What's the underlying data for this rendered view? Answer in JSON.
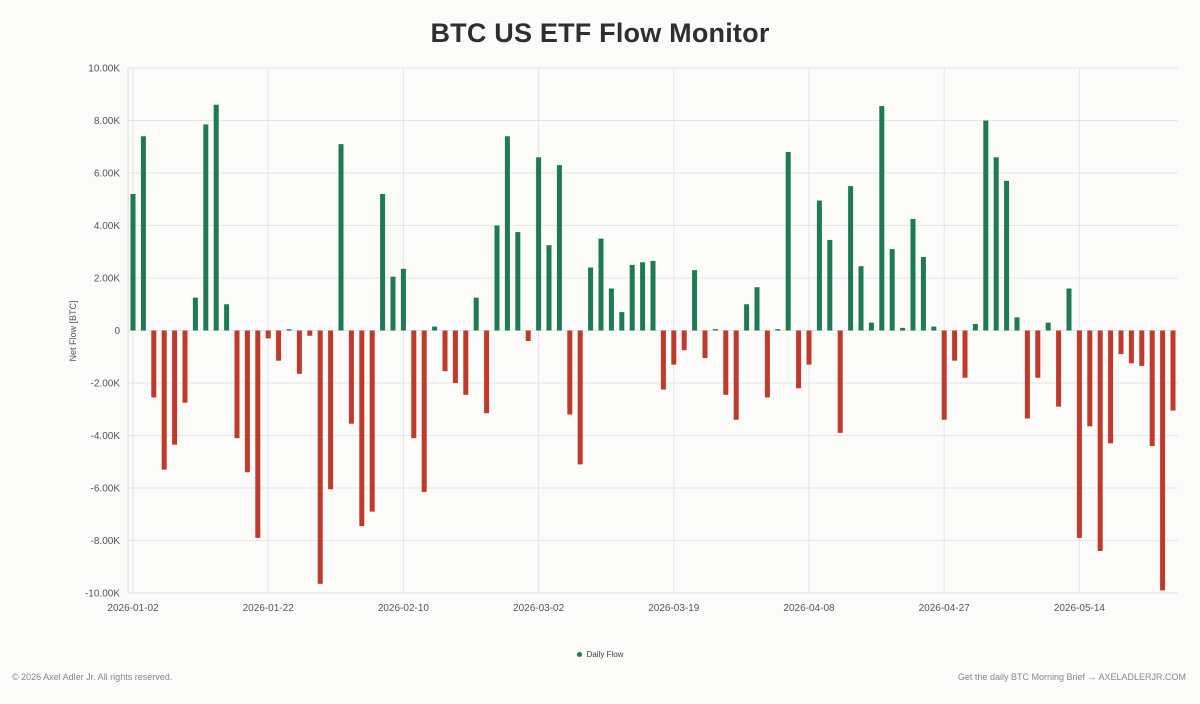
{
  "title": "BTC US ETF Flow Monitor",
  "footer": {
    "copyright": "© 2026 Axel Adler Jr. All rights reserved.",
    "brief": "Get the daily BTC Morning Brief → AXELADLERJR.COM"
  },
  "colors": {
    "positive": "#1e7a55",
    "negative": "#c0392b",
    "grid": "#e6e6e6"
  },
  "chart_data": {
    "type": "bar",
    "ylabel": "Net Flow [BTC]",
    "ylim": [
      -10000,
      10000
    ],
    "yticks": [
      {
        "value": 10000,
        "label": "10.00K"
      },
      {
        "value": 8000,
        "label": "8.00K"
      },
      {
        "value": 6000,
        "label": "6.00K"
      },
      {
        "value": 4000,
        "label": "4.00K"
      },
      {
        "value": 2000,
        "label": "2.00K"
      },
      {
        "value": 0,
        "label": "0"
      },
      {
        "value": -2000,
        "label": "-2.00K"
      },
      {
        "value": -4000,
        "label": "-4.00K"
      },
      {
        "value": -6000,
        "label": "-6.00K"
      },
      {
        "value": -8000,
        "label": "-8.00K"
      },
      {
        "value": -10000,
        "label": "-10.00K"
      }
    ],
    "xticks": [
      "2026-01-02",
      "2026-01-22",
      "2026-02-10",
      "2026-03-02",
      "2026-03-19",
      "2026-04-08",
      "2026-04-27",
      "2026-05-14"
    ],
    "xtick_bar_index": [
      0,
      13,
      26,
      39,
      52,
      65,
      78,
      91
    ],
    "grid": true,
    "legend": {
      "position": "bottom-center",
      "entries": [
        "Daily Flow"
      ]
    },
    "series": [
      {
        "name": "Daily Flow",
        "values": [
          5200,
          7400,
          -2550,
          -5300,
          -4350,
          -2750,
          1250,
          7850,
          8600,
          1000,
          -4100,
          -5400,
          -7900,
          -300,
          -1150,
          50,
          -1650,
          -200,
          -9650,
          -6050,
          7100,
          -3550,
          -7450,
          -6900,
          5200,
          2050,
          2350,
          -4100,
          -6150,
          150,
          -1550,
          -2000,
          -2450,
          1250,
          -3150,
          4000,
          7400,
          3750,
          -400,
          6600,
          3250,
          6300,
          -3200,
          -5100,
          2400,
          3500,
          1600,
          700,
          2500,
          2600,
          2650,
          -2250,
          -1300,
          -750,
          2300,
          -1050,
          50,
          -2450,
          -3400,
          1000,
          1650,
          -2550,
          50,
          6800,
          -2200,
          -1300,
          4950,
          3450,
          -3900,
          5500,
          2450,
          300,
          8550,
          3100,
          100,
          4250,
          2800,
          150,
          -3400,
          -1150,
          -1800,
          250,
          8000,
          6600,
          5700,
          500,
          -3350,
          -1800,
          300,
          -2900,
          1600,
          -7900,
          -3650,
          -8400,
          -4300,
          -900,
          -1250,
          -1350,
          -4400,
          -9900,
          -3050
        ]
      }
    ]
  }
}
